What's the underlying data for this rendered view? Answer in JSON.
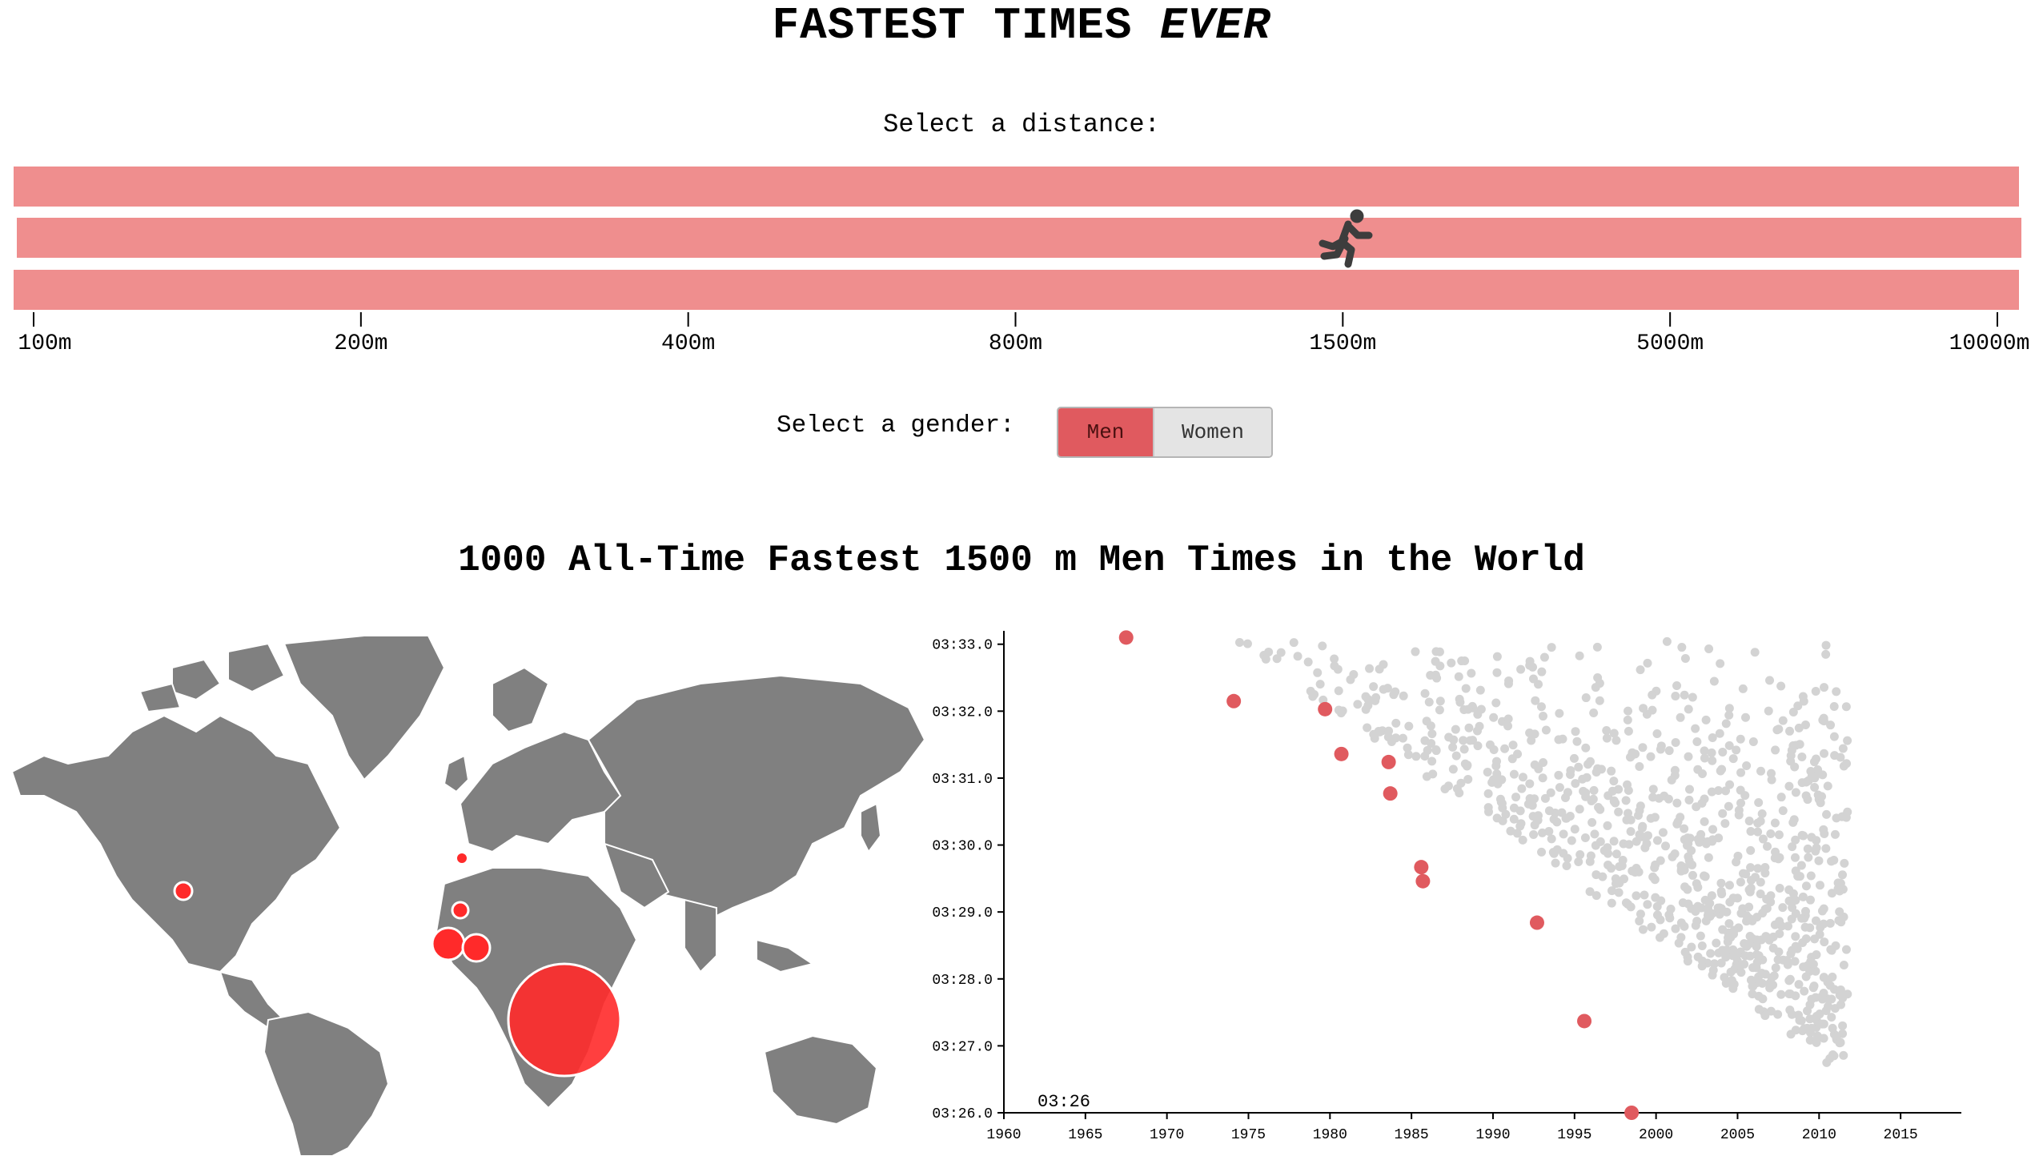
{
  "header": {
    "title_main": "FASTEST TIMES",
    "title_emphasis": "EVER"
  },
  "distance_selector": {
    "label": "Select a distance:",
    "options": [
      "100m",
      "200m",
      "400m",
      "800m",
      "1500m",
      "5000m",
      "10000m"
    ],
    "selected": "1500m",
    "runner_icon": "runner-icon",
    "track_color": "#ef8e8e"
  },
  "gender_selector": {
    "label": "Select a gender:",
    "options": [
      "Men",
      "Women"
    ],
    "selected": "Men",
    "active_color": "#e05a5f"
  },
  "section": {
    "title": "1000 All-Time Fastest 1500 m Men Times in the World"
  },
  "map": {
    "land_color": "#808080",
    "bubble_color": "#ff2a2a",
    "bubbles": [
      {
        "region": "East Africa",
        "relative_count": 1.0
      },
      {
        "region": "North Africa (west)",
        "relative_count": 0.16
      },
      {
        "region": "North Africa (east)",
        "relative_count": 0.13
      },
      {
        "region": "Iberia",
        "relative_count": 0.03
      },
      {
        "region": "British Isles",
        "relative_count": 0.02
      },
      {
        "region": "United States",
        "relative_count": 0.03
      }
    ]
  },
  "chart_data": {
    "type": "scatter",
    "title": "",
    "xlabel": "",
    "ylabel": "",
    "xlim": [
      1960,
      2018
    ],
    "ylim": [
      206.0,
      213.2
    ],
    "x_ticks": [
      "1960",
      "1965",
      "1970",
      "1975",
      "1980",
      "1985",
      "1990",
      "1995",
      "2000",
      "2005",
      "2010",
      "2015"
    ],
    "y_ticks": [
      "03:26.0",
      "03:27.0",
      "03:28.0",
      "03:29.0",
      "03:30.0",
      "03:31.0",
      "03:32.0",
      "03:33.0"
    ],
    "current_record_label": "03:26",
    "highlight_color": "#e05a5f",
    "background_point_color": "#d3d3d3",
    "series": [
      {
        "role": "progressive-best",
        "points": [
          [
            1967.5,
            213.1
          ],
          [
            1974.1,
            212.15
          ],
          [
            1979.7,
            212.03
          ],
          [
            1980.7,
            211.36
          ],
          [
            1983.6,
            211.24
          ],
          [
            1983.7,
            210.77
          ],
          [
            1985.6,
            209.67
          ],
          [
            1985.7,
            209.46
          ],
          [
            1992.7,
            208.84
          ],
          [
            1995.6,
            207.37
          ],
          [
            1998.5,
            206.0
          ]
        ]
      }
    ]
  }
}
